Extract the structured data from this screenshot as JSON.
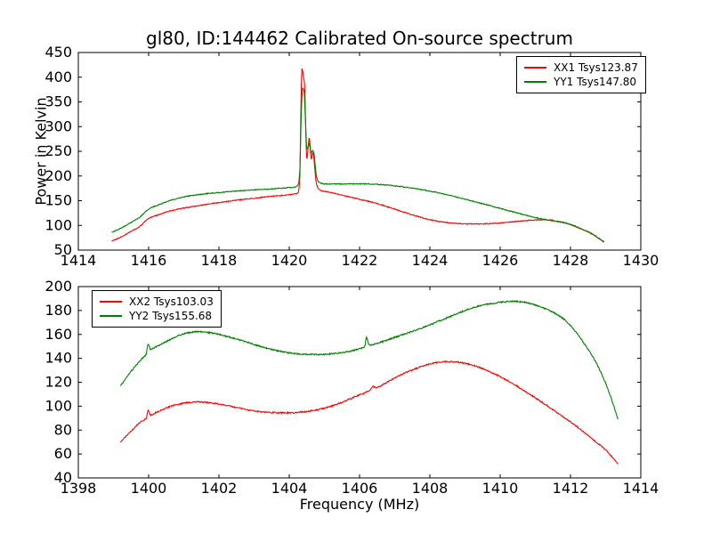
{
  "figure": {
    "title": "gl80, ID:144462 Calibrated On-source spectrum",
    "background": "#ffffff",
    "frame_color": "#000000"
  },
  "chart_data": [
    {
      "type": "line",
      "xlabel": "",
      "ylabel": "Power in Kelvin",
      "xlim": [
        1414,
        1430
      ],
      "ylim": [
        50,
        450
      ],
      "xticks": [
        1414,
        1416,
        1418,
        1420,
        1422,
        1424,
        1426,
        1428,
        1430
      ],
      "yticks": [
        50,
        100,
        150,
        200,
        250,
        300,
        350,
        400,
        450
      ],
      "grid": false,
      "noise_amplitude": 0.9,
      "legend": {
        "position": "top-right",
        "entries": [
          {
            "label": "XX1 Tsys123.87",
            "color": "#ff0000"
          },
          {
            "label": "YY1 Tsys147.80",
            "color": "#008000"
          }
        ]
      },
      "series": [
        {
          "name": "XX1 Tsys123.87",
          "color": "#ff0000",
          "points": [
            [
              1414.95,
              68
            ],
            [
              1415.2,
              76
            ],
            [
              1415.5,
              88
            ],
            [
              1415.75,
              98
            ],
            [
              1416.0,
              114
            ],
            [
              1416.3,
              122
            ],
            [
              1416.6,
              129
            ],
            [
              1417.0,
              135
            ],
            [
              1417.5,
              141
            ],
            [
              1418.0,
              146
            ],
            [
              1418.5,
              151
            ],
            [
              1419.0,
              155
            ],
            [
              1419.5,
              159
            ],
            [
              1420.0,
              162
            ],
            [
              1420.15,
              163.5
            ],
            [
              1420.25,
              166
            ],
            [
              1420.3,
              195
            ],
            [
              1420.33,
              330
            ],
            [
              1420.36,
              418
            ],
            [
              1420.4,
              403
            ],
            [
              1420.44,
              382
            ],
            [
              1420.47,
              290
            ],
            [
              1420.5,
              233
            ],
            [
              1420.54,
              260
            ],
            [
              1420.57,
              277
            ],
            [
              1420.6,
              252
            ],
            [
              1420.63,
              233
            ],
            [
              1420.66,
              248
            ],
            [
              1420.69,
              243
            ],
            [
              1420.73,
              212
            ],
            [
              1420.77,
              186
            ],
            [
              1420.83,
              174
            ],
            [
              1420.9,
              170.5
            ],
            [
              1421.0,
              169
            ],
            [
              1421.3,
              164.5
            ],
            [
              1421.6,
              159.5
            ],
            [
              1422.0,
              153
            ],
            [
              1422.5,
              144
            ],
            [
              1423.0,
              133
            ],
            [
              1423.5,
              121.5
            ],
            [
              1424.0,
              111.5
            ],
            [
              1424.4,
              106.5
            ],
            [
              1424.8,
              103.8
            ],
            [
              1425.2,
              102.8
            ],
            [
              1425.6,
              103.2
            ],
            [
              1426.0,
              105
            ],
            [
              1426.4,
              107.5
            ],
            [
              1426.8,
              110
            ],
            [
              1427.1,
              111.3
            ],
            [
              1427.4,
              110.9
            ],
            [
              1427.7,
              107.5
            ],
            [
              1428.0,
              101.5
            ],
            [
              1428.3,
              93
            ],
            [
              1428.6,
              83
            ],
            [
              1428.95,
              66
            ]
          ]
        },
        {
          "name": "YY1 Tsys147.80",
          "color": "#008000",
          "points": [
            [
              1414.95,
              86
            ],
            [
              1415.2,
              94
            ],
            [
              1415.5,
              106
            ],
            [
              1415.75,
              117
            ],
            [
              1416.0,
              133
            ],
            [
              1416.3,
              142
            ],
            [
              1416.6,
              150
            ],
            [
              1417.0,
              157.5
            ],
            [
              1417.5,
              163
            ],
            [
              1418.0,
              166.5
            ],
            [
              1418.5,
              169.5
            ],
            [
              1419.0,
              172
            ],
            [
              1419.5,
              174
            ],
            [
              1420.0,
              176.5
            ],
            [
              1420.15,
              177.5
            ],
            [
              1420.25,
              181
            ],
            [
              1420.3,
              210
            ],
            [
              1420.34,
              320
            ],
            [
              1420.38,
              378
            ],
            [
              1420.42,
              372
            ],
            [
              1420.46,
              315
            ],
            [
              1420.5,
              256
            ],
            [
              1420.54,
              257
            ],
            [
              1420.58,
              268
            ],
            [
              1420.62,
              246
            ],
            [
              1420.66,
              252
            ],
            [
              1420.7,
              247
            ],
            [
              1420.74,
              220
            ],
            [
              1420.78,
              197
            ],
            [
              1420.85,
              187
            ],
            [
              1421.0,
              184
            ],
            [
              1421.4,
              183.8
            ],
            [
              1421.8,
              184.2
            ],
            [
              1422.2,
              184
            ],
            [
              1422.6,
              182.5
            ],
            [
              1423.0,
              180
            ],
            [
              1423.4,
              176.5
            ],
            [
              1423.8,
              172
            ],
            [
              1424.2,
              166.5
            ],
            [
              1424.6,
              160
            ],
            [
              1425.0,
              153
            ],
            [
              1425.5,
              144
            ],
            [
              1426.0,
              134.5
            ],
            [
              1426.5,
              125
            ],
            [
              1427.0,
              116
            ],
            [
              1427.4,
              110.5
            ],
            [
              1427.7,
              107
            ],
            [
              1428.0,
              102
            ],
            [
              1428.3,
              93.5
            ],
            [
              1428.6,
              83.5
            ],
            [
              1428.95,
              67
            ]
          ]
        }
      ]
    },
    {
      "type": "line",
      "xlabel": "Frequency (MHz)",
      "ylabel": "",
      "xlim": [
        1398,
        1414
      ],
      "ylim": [
        40,
        200
      ],
      "xticks": [
        1398,
        1400,
        1402,
        1404,
        1406,
        1408,
        1410,
        1412,
        1414
      ],
      "yticks": [
        40,
        60,
        80,
        100,
        120,
        140,
        160,
        180,
        200
      ],
      "grid": false,
      "noise_amplitude": 0.55,
      "legend": {
        "position": "top-left",
        "entries": [
          {
            "label": "XX2 Tsys103.03",
            "color": "#ff0000"
          },
          {
            "label": "YY2 Tsys155.68",
            "color": "#008000"
          }
        ]
      },
      "series": [
        {
          "name": "XX2 Tsys103.03",
          "color": "#ff0000",
          "points": [
            [
              1399.2,
              70
            ],
            [
              1399.5,
              79
            ],
            [
              1399.8,
              87.5
            ],
            [
              1399.93,
              90
            ],
            [
              1399.99,
              96.5
            ],
            [
              1400.05,
              92.5
            ],
            [
              1400.2,
              94.5
            ],
            [
              1400.5,
              98.5
            ],
            [
              1400.8,
              101.2
            ],
            [
              1401.1,
              103
            ],
            [
              1401.4,
              103.5
            ],
            [
              1401.7,
              103
            ],
            [
              1402.0,
              101.8
            ],
            [
              1402.4,
              99.5
            ],
            [
              1402.8,
              97
            ],
            [
              1403.2,
              95.3
            ],
            [
              1403.6,
              94.6
            ],
            [
              1404.0,
              94.5
            ],
            [
              1404.4,
              95.3
            ],
            [
              1404.8,
              97
            ],
            [
              1405.2,
              100
            ],
            [
              1405.6,
              104.5
            ],
            [
              1406.0,
              109.5
            ],
            [
              1406.3,
              113.5
            ],
            [
              1406.38,
              116.5
            ],
            [
              1406.46,
              115.5
            ],
            [
              1406.8,
              120.5
            ],
            [
              1407.2,
              126.5
            ],
            [
              1407.6,
              131.5
            ],
            [
              1408.0,
              135.3
            ],
            [
              1408.4,
              137.2
            ],
            [
              1408.7,
              137
            ],
            [
              1409.0,
              135.8
            ],
            [
              1409.4,
              132.5
            ],
            [
              1409.8,
              127.5
            ],
            [
              1410.2,
              121.5
            ],
            [
              1410.6,
              114.5
            ],
            [
              1411.0,
              107
            ],
            [
              1411.4,
              99
            ],
            [
              1411.8,
              91
            ],
            [
              1412.2,
              82.5
            ],
            [
              1412.6,
              73
            ],
            [
              1413.0,
              63.5
            ],
            [
              1413.35,
              51.5
            ]
          ]
        },
        {
          "name": "YY2 Tsys155.68",
          "color": "#008000",
          "points": [
            [
              1399.2,
              117
            ],
            [
              1399.5,
              129
            ],
            [
              1399.8,
              139.5
            ],
            [
              1399.93,
              143.5
            ],
            [
              1399.99,
              152
            ],
            [
              1400.05,
              147.5
            ],
            [
              1400.2,
              149.5
            ],
            [
              1400.5,
              154
            ],
            [
              1400.8,
              158.5
            ],
            [
              1401.1,
              161.2
            ],
            [
              1401.4,
              162.2
            ],
            [
              1401.7,
              161.6
            ],
            [
              1402.0,
              160
            ],
            [
              1402.4,
              157
            ],
            [
              1402.8,
              153.5
            ],
            [
              1403.2,
              149.8
            ],
            [
              1403.6,
              146.8
            ],
            [
              1404.0,
              144.6
            ],
            [
              1404.4,
              143.4
            ],
            [
              1404.8,
              143.2
            ],
            [
              1405.2,
              143.8
            ],
            [
              1405.6,
              145.3
            ],
            [
              1406.0,
              148
            ],
            [
              1406.14,
              149.5
            ],
            [
              1406.2,
              157.5
            ],
            [
              1406.28,
              151
            ],
            [
              1406.6,
              153.5
            ],
            [
              1407.0,
              157.5
            ],
            [
              1407.5,
              162.5
            ],
            [
              1408.0,
              168
            ],
            [
              1408.5,
              174
            ],
            [
              1409.0,
              180
            ],
            [
              1409.5,
              184.5
            ],
            [
              1410.0,
              186.8
            ],
            [
              1410.35,
              187.7
            ],
            [
              1410.7,
              186.8
            ],
            [
              1411.0,
              184.5
            ],
            [
              1411.4,
              180
            ],
            [
              1411.8,
              173
            ],
            [
              1412.1,
              164
            ],
            [
              1412.4,
              152
            ],
            [
              1412.7,
              138
            ],
            [
              1413.0,
              119
            ],
            [
              1413.2,
              103
            ],
            [
              1413.35,
              89
            ]
          ]
        }
      ]
    }
  ]
}
